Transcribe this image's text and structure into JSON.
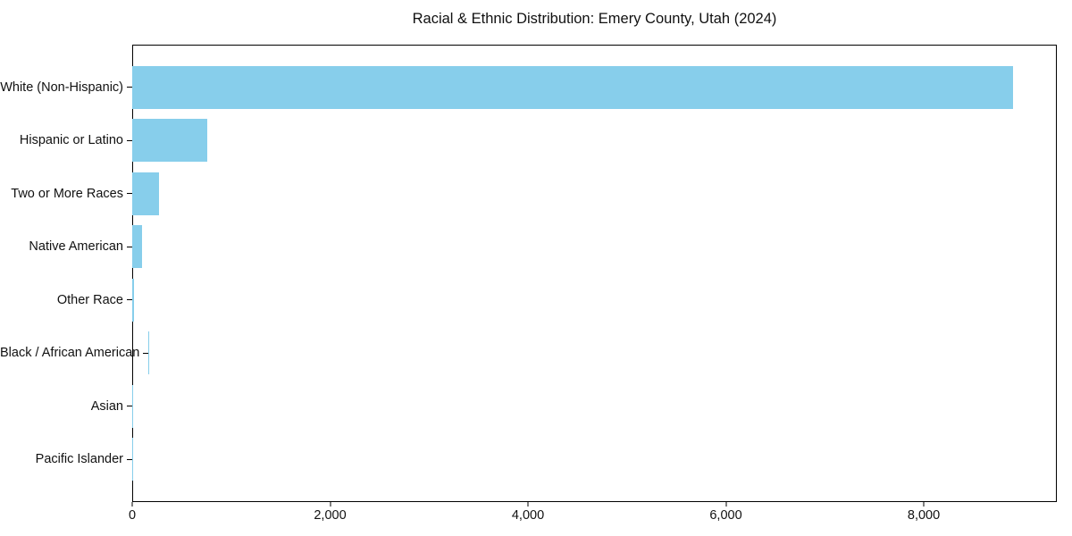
{
  "page": {
    "background": "#ffffff"
  },
  "chart_data": {
    "type": "bar",
    "orientation": "horizontal",
    "title": "Racial & Ethnic Distribution: Emery County, Utah (2024)",
    "categories": [
      "White (Non-Hispanic)",
      "Hispanic or Latino",
      "Two or More Races",
      "Native American",
      "Other Race",
      "Black / African American",
      "Asian",
      "Pacific Islander"
    ],
    "values": [
      8900,
      755,
      270,
      95,
      15,
      8,
      5,
      2
    ],
    "xlabel": "",
    "ylabel": "",
    "xlim": [
      0,
      9345
    ],
    "x_ticks": [
      0,
      2000,
      4000,
      6000,
      8000
    ],
    "x_tick_labels": [
      "0",
      "2,000",
      "4,000",
      "6,000",
      "8,000"
    ],
    "bar_color": "#87CEEB",
    "frame_color": "#000000",
    "text_color": "#111111",
    "grid": false,
    "legend": false
  }
}
